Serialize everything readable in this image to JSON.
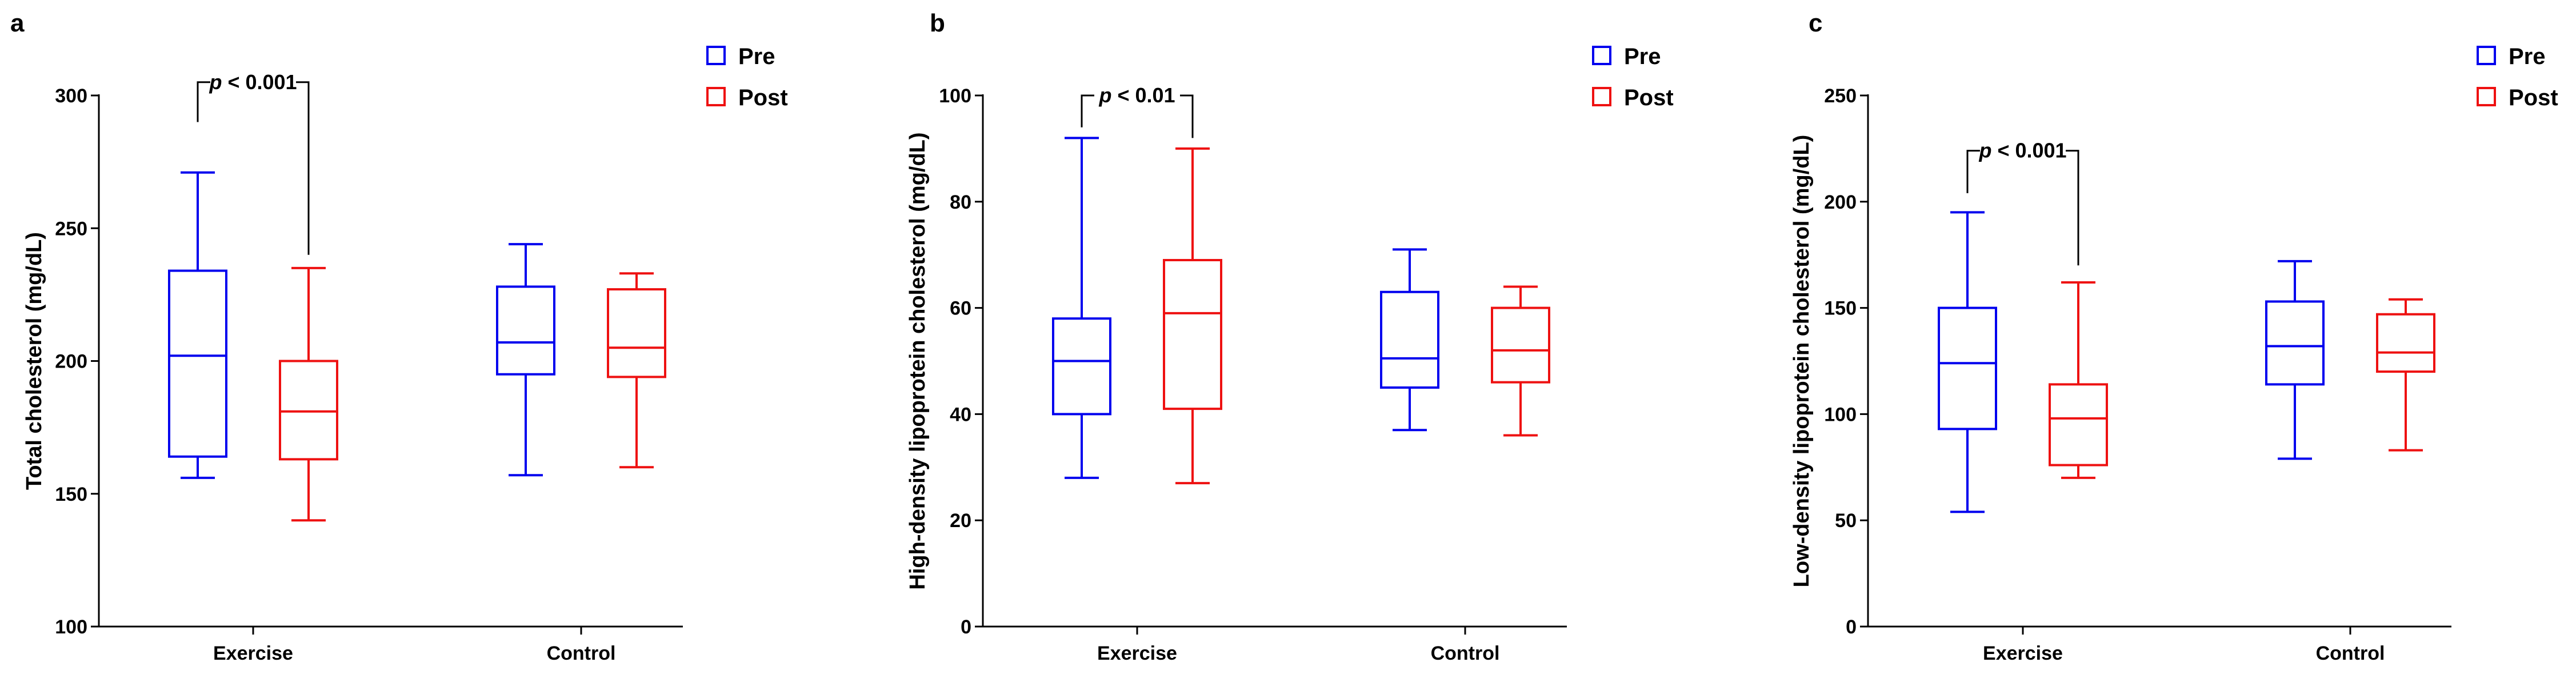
{
  "chart_data": [
    {
      "type": "box",
      "panel": "a",
      "ylabel": "Total cholesterol (mg/dL)",
      "ylim": [
        100,
        300
      ],
      "yticks": [
        100,
        150,
        200,
        250,
        300
      ],
      "categories": [
        "Exercise",
        "Control"
      ],
      "legend": {
        "position": "top-right",
        "entries": [
          "Pre",
          "Post"
        ]
      },
      "series": [
        {
          "name": "Pre",
          "color": "#0000ee",
          "boxes": [
            {
              "min": 156,
              "q1": 164,
              "median": 202,
              "q3": 234,
              "max": 271
            },
            {
              "min": 157,
              "q1": 195,
              "median": 207,
              "q3": 228,
              "max": 244
            }
          ]
        },
        {
          "name": "Post",
          "color": "#ee1111",
          "boxes": [
            {
              "min": 140,
              "q1": 163,
              "median": 181,
              "q3": 200,
              "max": 235
            },
            {
              "min": 160,
              "q1": 194,
              "median": 205,
              "q3": 227,
              "max": 233
            }
          ]
        }
      ],
      "annotation": {
        "italic": "p",
        "text": " < 0.001",
        "category": "Exercise",
        "top": 305,
        "pre_end": 290,
        "post_end": 240
      }
    },
    {
      "type": "box",
      "panel": "b",
      "ylabel": "High-density lipoprotein cholesterol (mg/dL)",
      "ylim": [
        0,
        100
      ],
      "yticks": [
        0,
        20,
        40,
        60,
        80,
        100
      ],
      "categories": [
        "Exercise",
        "Control"
      ],
      "legend": {
        "position": "top-right",
        "entries": [
          "Pre",
          "Post"
        ]
      },
      "series": [
        {
          "name": "Pre",
          "color": "#0000ee",
          "boxes": [
            {
              "min": 28,
              "q1": 40,
              "median": 50,
              "q3": 58,
              "max": 92
            },
            {
              "min": 37,
              "q1": 45,
              "median": 50.5,
              "q3": 63,
              "max": 71
            }
          ]
        },
        {
          "name": "Post",
          "color": "#ee1111",
          "boxes": [
            {
              "min": 27,
              "q1": 41,
              "median": 59,
              "q3": 69,
              "max": 90
            },
            {
              "min": 36,
              "q1": 46,
              "median": 52,
              "q3": 60,
              "max": 64
            }
          ]
        }
      ],
      "annotation": {
        "italic": "p",
        "text": " < 0.01",
        "category": "Exercise",
        "top": 100,
        "pre_end": 94,
        "post_end": 92
      }
    },
    {
      "type": "box",
      "panel": "c",
      "ylabel": "Low-density lipoprotein cholesterol (mg/dL)",
      "ylim": [
        0,
        250
      ],
      "yticks": [
        0,
        50,
        100,
        150,
        200,
        250
      ],
      "categories": [
        "Exercise",
        "Control"
      ],
      "legend": {
        "position": "top-right",
        "entries": [
          "Pre",
          "Post"
        ]
      },
      "series": [
        {
          "name": "Pre",
          "color": "#0000ee",
          "boxes": [
            {
              "min": 54,
              "q1": 93,
              "median": 124,
              "q3": 150,
              "max": 195
            },
            {
              "min": 79,
              "q1": 114,
              "median": 132,
              "q3": 153,
              "max": 172
            }
          ]
        },
        {
          "name": "Post",
          "color": "#ee1111",
          "boxes": [
            {
              "min": 70,
              "q1": 76,
              "median": 98,
              "q3": 114,
              "max": 162
            },
            {
              "min": 83,
              "q1": 120,
              "median": 129,
              "q3": 147,
              "max": 154
            }
          ]
        }
      ],
      "annotation": {
        "italic": "p",
        "text": " < 0.001",
        "category": "Exercise",
        "top": 224,
        "pre_end": 204,
        "post_end": 170
      }
    }
  ]
}
